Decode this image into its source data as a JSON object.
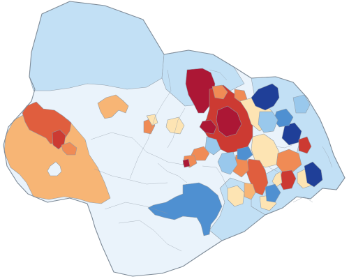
{
  "map": {
    "type": "choropleth",
    "class_colors": {
      "very_low": "#eaf3fb",
      "low": "#c2e0f5",
      "lowmid": "#99c8ec",
      "mid_blue": "#4f90d1",
      "dark_blue": "#2b62b1",
      "navy": "#1f3f98",
      "cream": "#fde4b3",
      "light_orange": "#f7b575",
      "orange": "#f08b55",
      "red_orange": "#e05e3e",
      "red": "#cc3a32",
      "dark_red": "#ac1735"
    },
    "regions": [
      {
        "name": "north-lobe",
        "class": "low"
      },
      {
        "name": "west-lowland",
        "class": "very_low"
      },
      {
        "name": "south-lowland",
        "class": "very_low"
      },
      {
        "name": "west-orange-block",
        "class": "light_orange"
      },
      {
        "name": "west-red-patch",
        "class": "red_orange"
      },
      {
        "name": "central-light-strip",
        "class": "low"
      },
      {
        "name": "north-red-urban",
        "class": "dark_red"
      },
      {
        "name": "central-red-cluster",
        "class": "red"
      },
      {
        "name": "south-blue-district",
        "class": "mid_blue"
      },
      {
        "name": "east-navy-north",
        "class": "navy"
      },
      {
        "name": "east-navy-south",
        "class": "navy"
      },
      {
        "name": "east-orange-patch",
        "class": "orange"
      },
      {
        "name": "east-cream-patch",
        "class": "cream"
      }
    ]
  }
}
